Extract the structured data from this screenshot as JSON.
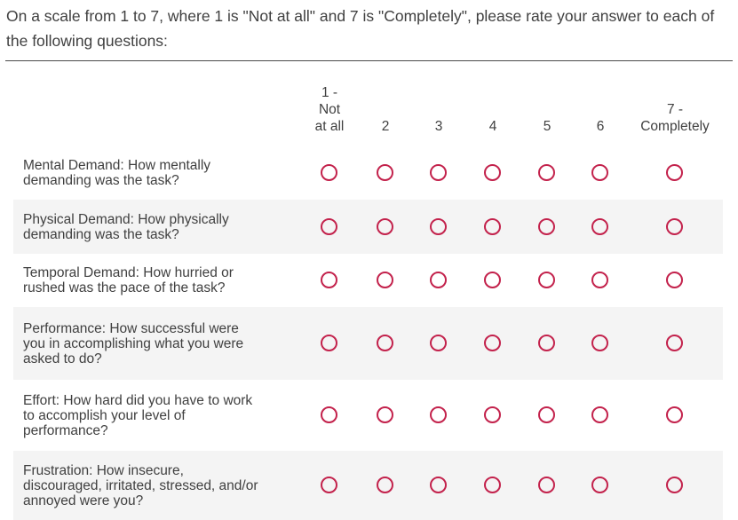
{
  "question": {
    "text": "On a scale from 1 to 7, where 1 is \"Not at all\" and 7 is \"Completely\", please rate your answer to each of the following questions:"
  },
  "columns": [
    {
      "line1": "1 -",
      "line2": "Not",
      "line3": "at all"
    },
    {
      "line1": "2"
    },
    {
      "line1": "3"
    },
    {
      "line1": "4"
    },
    {
      "line1": "5"
    },
    {
      "line1": "6"
    },
    {
      "line1": "7 -",
      "line2": "Completely"
    }
  ],
  "rows": [
    {
      "label_lines": [
        "Mental Demand: How mentally",
        "demanding was the task?"
      ]
    },
    {
      "label_lines": [
        "Physical Demand: How physically",
        "demanding was the task?"
      ]
    },
    {
      "label_lines": [
        "Temporal Demand: How hurried or",
        "rushed was the pace of the task?"
      ]
    },
    {
      "label_lines": [
        "Performance: How successful were",
        "you in accomplishing what you were",
        "asked to do?"
      ]
    },
    {
      "label_lines": [
        "Effort: How hard did you have to work",
        "to accomplish your level of",
        "performance?"
      ]
    },
    {
      "label_lines": [
        "Frustration: How insecure,",
        "discouraged, irritated, stressed, and/or",
        "annoyed were you?"
      ]
    }
  ],
  "colors": {
    "radio_border": "#c3224c",
    "row_shade": "#f4f4f4",
    "text": "#404040"
  }
}
